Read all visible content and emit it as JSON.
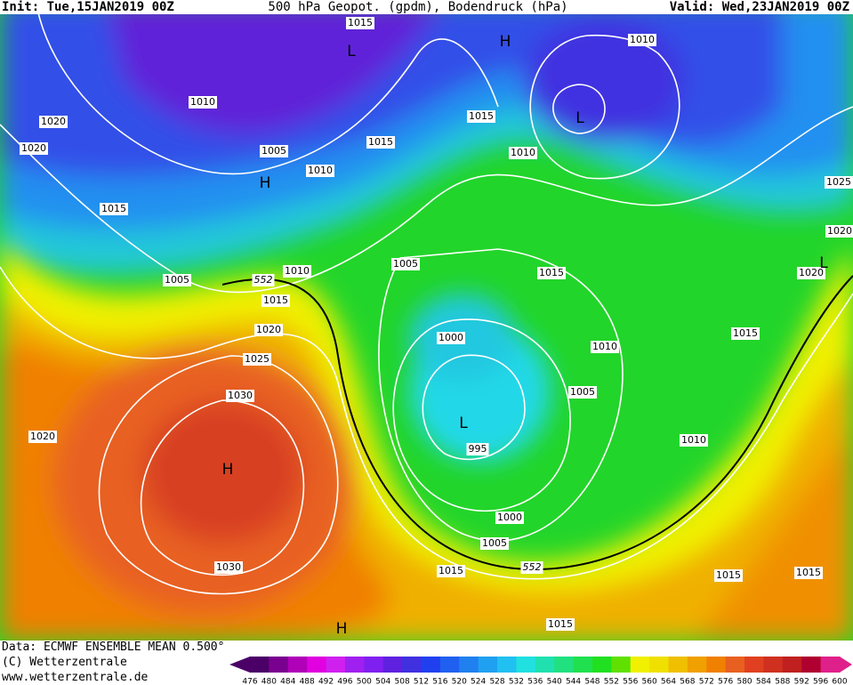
{
  "header": {
    "init": "Init: Tue,15JAN2019 00Z",
    "title": "500 hPa Geopot. (gpdm), Bodendruck (hPa)",
    "valid": "Valid: Wed,23JAN2019 00Z"
  },
  "map": {
    "isobar_labels": [
      "1015",
      "1010",
      "1010",
      "1015",
      "1020",
      "1015",
      "1020",
      "1005",
      "1010",
      "1010",
      "1025",
      "1015",
      "1020",
      "1005",
      "1010",
      "1005",
      "1015",
      "1020",
      "1015",
      "1015",
      "1020",
      "1000",
      "1010",
      "1025",
      "1005",
      "1030",
      "1010",
      "995",
      "1020",
      "1000",
      "1005",
      "1030",
      "1015",
      "1015",
      "1015",
      "1015"
    ],
    "height_labels": [
      "552",
      "552"
    ],
    "pressure_centers": [
      "H",
      "L",
      "L",
      "H",
      "L",
      "H",
      "H",
      "L"
    ]
  },
  "footer": {
    "data": "Data: ECMWF ENSEMBLE MEAN 0.500°",
    "copyright": "(C) Wetterzentrale",
    "url": "www.wetterzentrale.de"
  },
  "colorbar": {
    "values": [
      476,
      480,
      484,
      488,
      492,
      496,
      500,
      504,
      508,
      512,
      516,
      520,
      524,
      528,
      532,
      536,
      540,
      544,
      548,
      552,
      556,
      560,
      564,
      568,
      572,
      576,
      580,
      584,
      588,
      592,
      596,
      600
    ],
    "colors": [
      "#4b0068",
      "#7a0090",
      "#b000b8",
      "#e000e0",
      "#d020f0",
      "#a020f0",
      "#8020f0",
      "#6020e0",
      "#4030e0",
      "#2040f0",
      "#2060f0",
      "#2080f0",
      "#20a0f0",
      "#20c0f0",
      "#20e0e0",
      "#20e0b0",
      "#20e080",
      "#20e050",
      "#20e020",
      "#60e000",
      "#f0f000",
      "#f0e000",
      "#f0c000",
      "#f0a000",
      "#f08000",
      "#e86020",
      "#e04020",
      "#d03020",
      "#c02020",
      "#b00030",
      "#e0208a"
    ]
  }
}
